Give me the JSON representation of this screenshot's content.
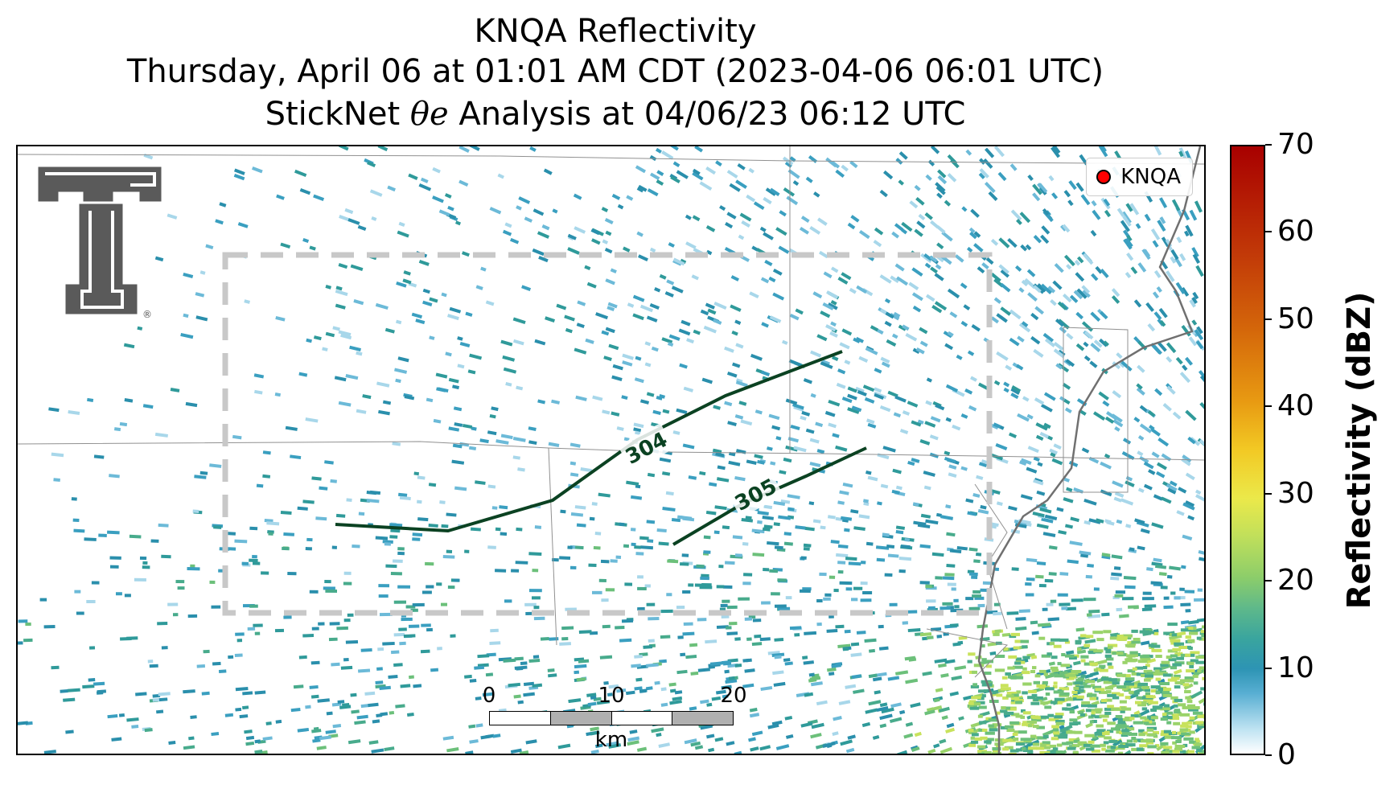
{
  "title": {
    "line1": "KNQA Reflectivity",
    "line2": "Thursday, April 06 at 01:01 AM CDT (2023-04-06 06:01 UTC)",
    "line3_prefix": "StickNet ",
    "line3_symbol": "θe",
    "line3_suffix": " Analysis at 04/06/23 06:12 UTC"
  },
  "legend": {
    "label": "KNQA",
    "marker_color": "#ff0000"
  },
  "colorbar": {
    "label": "Reflectivity (dBZ)",
    "ticks": [
      "0",
      "10",
      "20",
      "30",
      "40",
      "50",
      "60",
      "70"
    ],
    "range": [
      0,
      70
    ]
  },
  "contours": [
    {
      "label": "304",
      "color": "#0b4222"
    },
    {
      "label": "305",
      "color": "#0b4222"
    }
  ],
  "scale_bar": {
    "ticks": [
      "0",
      "10",
      "20"
    ],
    "unit": "km"
  },
  "logo": {
    "name": "texas-tech-double-t-logo",
    "mark": "®"
  },
  "colors": {
    "contour": "#0b4222",
    "analysis_box": "#c8c8c8",
    "boundary": "#808080"
  },
  "icons": [
    "double-t-logo-icon",
    "radar-site-marker-icon"
  ]
}
